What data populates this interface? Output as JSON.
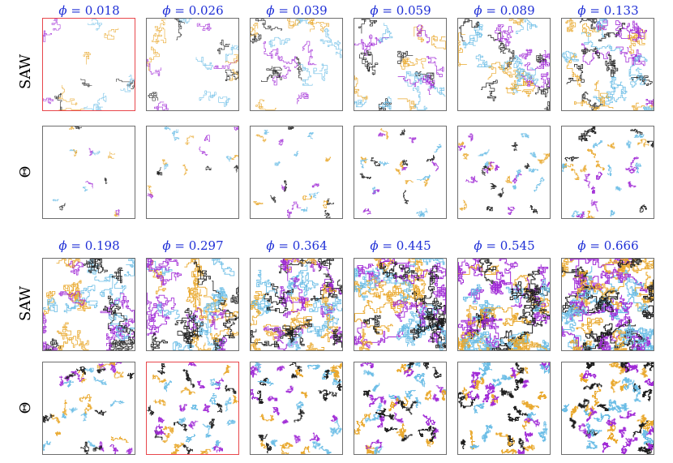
{
  "colors": {
    "accent_label": "#1f2fd6",
    "cyan": "#6bbde6",
    "orange": "#e9a82c",
    "purple": "#a02ad6",
    "black": "#1c1c1c",
    "frame": "#6e6e6e",
    "frame_highlight": "#e8474c"
  },
  "row_labels": {
    "saw": "SAW",
    "theta": "Θ"
  },
  "blocks": [
    {
      "phi_symbol": "ϕ",
      "phi_values": [
        "0.018",
        "0.026",
        "0.039",
        "0.059",
        "0.089",
        "0.133"
      ],
      "highlight": {
        "saw": [
          0
        ],
        "theta": []
      }
    },
    {
      "phi_symbol": "ϕ",
      "phi_values": [
        "0.198",
        "0.297",
        "0.364",
        "0.445",
        "0.545",
        "0.666"
      ],
      "highlight": {
        "saw": [],
        "theta": [
          1
        ]
      }
    }
  ]
}
